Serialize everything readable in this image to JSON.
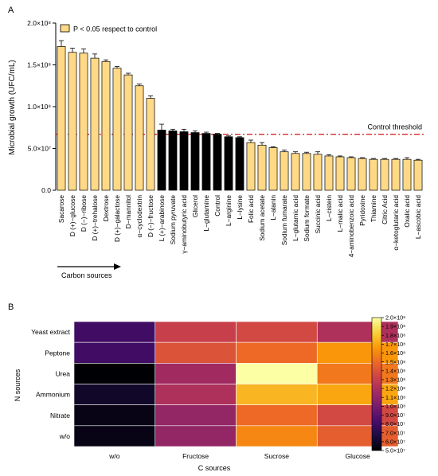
{
  "chart_data": [
    {
      "panel_label": "A",
      "type": "bar",
      "ylabel": "Microbial growth (UFC/mL)",
      "ylim": [
        0,
        200000000
      ],
      "yticks": [
        0,
        50000000,
        100000000,
        150000000,
        200000000
      ],
      "ytick_labels": [
        "0.0",
        "5.0×10⁷",
        "1.0×10⁸",
        "1.5×10⁸",
        "2.0×10⁸"
      ],
      "legend": {
        "label": "P < 0.05 respect to control",
        "color": "#ffd986",
        "position": "top-left"
      },
      "threshold": {
        "label": "Control threshold",
        "value": 67000000,
        "color": "#d62728"
      },
      "arrow_label": "Carbon sources",
      "colors": {
        "significant": "#ffd986",
        "not_significant": "#000000"
      },
      "categories": [
        "Sacarose",
        "D (+)−glucose",
        "D (−)−ribose",
        "D (+)−trehalose",
        "Dextrose",
        "D (+)−galactose",
        "D−mannitol",
        "α−cyclodextrin",
        "D (−)−fructose",
        "L (+)−arabinose",
        "Sodium pyruvate",
        "γ−aminobutyric acid",
        "Glicerol",
        "L−glutamine",
        "Control",
        "L−arginine",
        "L−lysine",
        "Folic acid",
        "Sodium acetate",
        "L−alanin",
        "Sodium fumarate",
        "L−glutamic acid",
        "Sodium formate",
        "Succinic acid",
        "L−cistein",
        "L−malic acid",
        "4−aminobenzoic acid",
        "Pyridoxine",
        "Thiamine",
        "Citric Acid",
        "α−ketoglutaric acid",
        "Oxalic acid",
        "L−ascobic acid"
      ],
      "values": [
        172000000,
        165000000,
        164000000,
        158000000,
        154000000,
        146000000,
        138000000,
        125000000,
        110000000,
        72000000,
        71000000,
        70000000,
        69000000,
        68000000,
        67000000,
        64000000,
        63000000,
        57000000,
        54000000,
        51000000,
        46000000,
        44000000,
        44000000,
        43000000,
        41000000,
        40000000,
        39000000,
        38000000,
        37000000,
        37000000,
        37000000,
        37000000,
        36000000
      ],
      "errors": [
        7000000,
        5000000,
        5000000,
        5000000,
        2000000,
        2000000,
        2000000,
        2000000,
        3000000,
        7000000,
        2000000,
        3000000,
        2000000,
        1500000,
        1000000,
        1000000,
        1000000,
        3000000,
        3000000,
        1000000,
        2000000,
        2000000,
        1500000,
        3000000,
        1500000,
        1000000,
        1000000,
        1000000,
        1000000,
        1000000,
        1000000,
        2000000,
        1000000
      ],
      "significant": [
        true,
        true,
        true,
        true,
        true,
        true,
        true,
        true,
        true,
        false,
        false,
        false,
        false,
        false,
        false,
        false,
        false,
        true,
        true,
        true,
        true,
        true,
        true,
        true,
        true,
        true,
        true,
        true,
        true,
        true,
        true,
        true,
        true
      ]
    },
    {
      "panel_label": "B",
      "type": "heatmap",
      "xlabel": "C sources",
      "ylabel": "N sources",
      "x": [
        "w/o",
        "Fructose",
        "Sucrose",
        "Glucose"
      ],
      "y": [
        "Yeast extract",
        "Peptone",
        "Urea",
        "Ammonium",
        "Nitrate",
        "w/o"
      ],
      "values": [
        [
          80000000,
          130000000,
          135000000,
          120000000
        ],
        [
          80000000,
          140000000,
          150000000,
          165000000
        ],
        [
          50000000,
          115000000,
          200000000,
          155000000
        ],
        [
          60000000,
          120000000,
          175000000,
          170000000
        ],
        [
          55000000,
          110000000,
          150000000,
          135000000
        ],
        [
          55000000,
          110000000,
          160000000,
          145000000
        ]
      ],
      "colorbar": {
        "min": 50000000,
        "max": 200000000,
        "tick_labels": [
          "5.0×10⁷",
          "6.0×10⁷",
          "7.0×10⁷",
          "8.0×10⁷",
          "9.0×10⁷",
          "1.0×10⁸",
          "1.1×10⁸",
          "1.2×10⁸",
          "1.3×10⁸",
          "1.4×10⁸",
          "1.5×10⁸",
          "1.6×10⁸",
          "1.7×10⁸",
          "1.8×10⁸",
          "1.9×10⁸",
          "2.0×10⁸"
        ],
        "colormap": [
          "#000004",
          "#1b0c41",
          "#4a0c6b",
          "#781c6d",
          "#a52c60",
          "#cf4446",
          "#ed6925",
          "#fb9b06",
          "#f7d13d",
          "#fcffa4"
        ]
      }
    }
  ]
}
